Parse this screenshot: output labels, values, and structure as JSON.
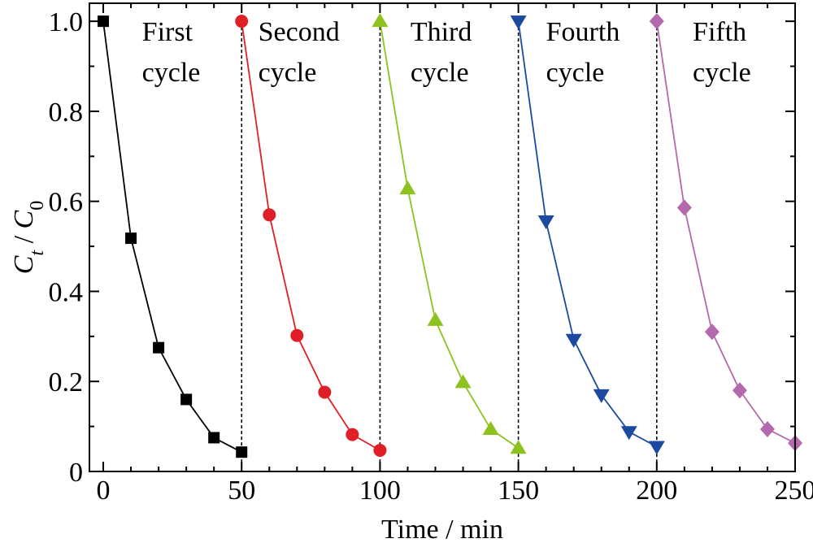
{
  "chart_data": {
    "type": "line",
    "xlabel": "Time / min",
    "ylabel": {
      "main": "C",
      "sub1": "t",
      "sep": " / ",
      "main2": "C",
      "sub2": "0"
    },
    "xlim": [
      -5,
      250
    ],
    "ylim": [
      0,
      1.04
    ],
    "xticks": [
      0,
      50,
      100,
      150,
      200,
      250
    ],
    "xtick_labels": [
      "0",
      "50",
      "100",
      "150",
      "200",
      "250"
    ],
    "yticks": [
      0,
      0.2,
      0.4,
      0.6,
      0.8,
      1.0
    ],
    "ytick_labels": [
      "0",
      "0.2",
      "0.4",
      "0.6",
      "0.8",
      "1.0"
    ],
    "x_minor_ticks": [
      10,
      20,
      30,
      40,
      60,
      70,
      80,
      90,
      110,
      120,
      130,
      140,
      160,
      170,
      180,
      190,
      210,
      220,
      230,
      240
    ],
    "y_minor_ticks": [
      0.1,
      0.3,
      0.5,
      0.7,
      0.9
    ],
    "grid": false,
    "cycle_dividers": [
      50,
      100,
      150,
      200
    ],
    "annotations": [
      {
        "line1": "First",
        "line2": "cycle",
        "x": 14
      },
      {
        "line1": "Second",
        "line2": "cycle",
        "x": 56
      },
      {
        "line1": "Third",
        "line2": "cycle",
        "x": 111
      },
      {
        "line1": "Fourth",
        "line2": "cycle",
        "x": 160
      },
      {
        "line1": "Fifth",
        "line2": "cycle",
        "x": 213
      }
    ],
    "series": [
      {
        "marker": "square",
        "color": "#000000",
        "x": [
          0,
          10,
          20,
          30,
          40,
          50
        ],
        "y": [
          1.0,
          0.518,
          0.275,
          0.16,
          0.075,
          0.043
        ]
      },
      {
        "marker": "circle",
        "color": "#e01e25",
        "x": [
          50,
          60,
          70,
          80,
          90,
          100
        ],
        "y": [
          1.0,
          0.57,
          0.302,
          0.176,
          0.082,
          0.047
        ]
      },
      {
        "marker": "triangle-up",
        "color": "#8dc21f",
        "x": [
          100,
          110,
          120,
          130,
          140,
          150
        ],
        "y": [
          1.0,
          0.628,
          0.336,
          0.198,
          0.094,
          0.052
        ]
      },
      {
        "marker": "triangle-down",
        "color": "#1c4aa1",
        "x": [
          150,
          160,
          170,
          180,
          190,
          200
        ],
        "y": [
          1.0,
          0.556,
          0.293,
          0.17,
          0.088,
          0.055
        ]
      },
      {
        "marker": "diamond",
        "color": "#b569ad",
        "x": [
          200,
          210,
          220,
          230,
          240,
          250
        ],
        "y": [
          1.0,
          0.586,
          0.31,
          0.18,
          0.094,
          0.063
        ]
      }
    ]
  }
}
